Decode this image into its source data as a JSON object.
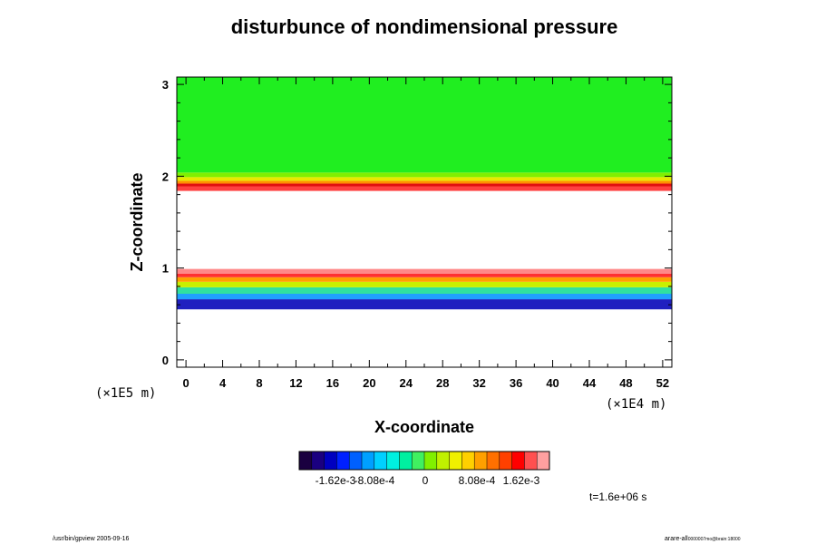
{
  "chart_data": {
    "type": "heatmap",
    "title": "disturbunce of nondimensional pressure",
    "xlabel": "X-coordinate",
    "ylabel": "Z-coordinate",
    "x_unit": "(×1E4 m)",
    "y_unit": "(×1E5 m)",
    "xlim": [
      -1,
      53
    ],
    "ylim": [
      -0.08,
      3.08
    ],
    "xticks": [
      0,
      4,
      8,
      12,
      16,
      20,
      24,
      28,
      32,
      36,
      40,
      44,
      48,
      52
    ],
    "yticks": [
      0,
      1,
      2,
      3
    ],
    "bands": [
      {
        "z_bottom": 0.55,
        "z_top": 0.66,
        "color": "#2020c0"
      },
      {
        "z_bottom": 0.66,
        "z_top": 0.72,
        "color": "#20a0ff"
      },
      {
        "z_bottom": 0.72,
        "z_top": 0.79,
        "color": "#30e0a0"
      },
      {
        "z_bottom": 0.79,
        "z_top": 0.85,
        "color": "#c8f000"
      },
      {
        "z_bottom": 0.85,
        "z_top": 0.9,
        "color": "#ffa000"
      },
      {
        "z_bottom": 0.9,
        "z_top": 0.94,
        "color": "#ff3030"
      },
      {
        "z_bottom": 0.94,
        "z_top": 0.99,
        "color": "#ff8888"
      },
      {
        "z_bottom": 1.84,
        "z_top": 1.89,
        "color": "#ff4040"
      },
      {
        "z_bottom": 1.89,
        "z_top": 1.92,
        "color": "#e01010"
      },
      {
        "z_bottom": 1.92,
        "z_top": 1.95,
        "color": "#ff9000"
      },
      {
        "z_bottom": 1.95,
        "z_top": 1.99,
        "color": "#e8e800"
      },
      {
        "z_bottom": 1.99,
        "z_top": 2.04,
        "color": "#80f000"
      },
      {
        "z_bottom": 2.04,
        "z_top": 3.08,
        "color": "#20ee20"
      }
    ],
    "colorbar": {
      "ticks": [
        "-1.62e-3",
        "-8.08e-4",
        "0",
        "8.08e-4",
        "1.62e-3"
      ],
      "colors": [
        "#1a0040",
        "#1a0080",
        "#0000c0",
        "#0020ff",
        "#0060ff",
        "#00a0ff",
        "#00d0ff",
        "#00f0e0",
        "#00f0a0",
        "#40f060",
        "#80f000",
        "#c0f000",
        "#f0f000",
        "#ffd000",
        "#ffa000",
        "#ff7000",
        "#ff4000",
        "#ff0000",
        "#ff5050",
        "#ffa0a0"
      ]
    },
    "time_label": "t=1.6e+06 s"
  },
  "footer": {
    "left": "/usr/bin/gpview 2005-09-16",
    "right_main": "arare-all",
    "right_sub": "0000007mo@brain:18000"
  }
}
